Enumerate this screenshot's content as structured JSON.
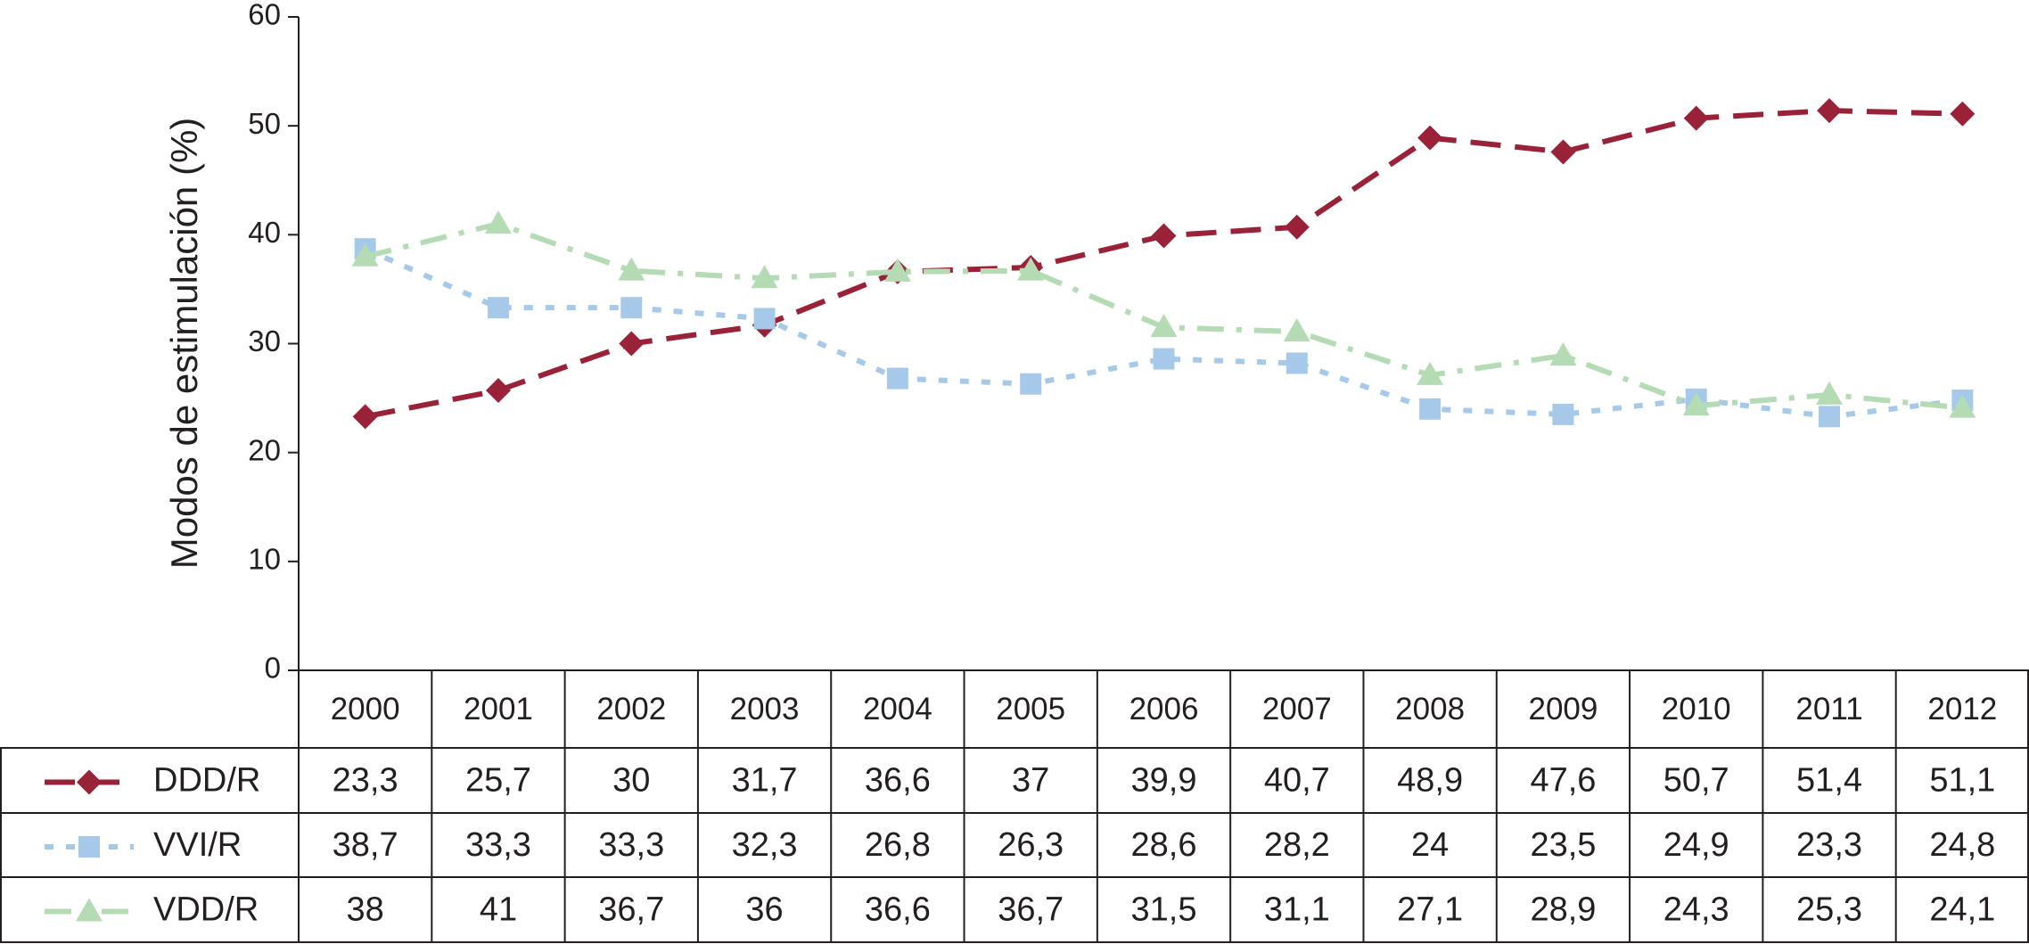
{
  "chart_data": {
    "type": "line",
    "y_label": "Modos de estimulación (%)",
    "categories": [
      "2000",
      "2001",
      "2002",
      "2003",
      "2004",
      "2005",
      "2006",
      "2007",
      "2008",
      "2009",
      "2010",
      "2011",
      "2012"
    ],
    "ylim": [
      0,
      60
    ],
    "yticks": [
      0,
      10,
      20,
      30,
      40,
      50,
      60
    ],
    "series": [
      {
        "name": "DDD/R",
        "color": "#9a2238",
        "marker": "diamond",
        "line_style": "dashed",
        "values": [
          23.3,
          25.7,
          30,
          31.7,
          36.6,
          37,
          39.9,
          40.7,
          48.9,
          47.6,
          50.7,
          51.4,
          51.1
        ],
        "value_labels": [
          "23,3",
          "25,7",
          "30",
          "31,7",
          "36,6",
          "37",
          "39,9",
          "40,7",
          "48,9",
          "47,6",
          "50,7",
          "51,4",
          "51,1"
        ]
      },
      {
        "name": "VVI/R",
        "color": "#a7c9e9",
        "marker": "square",
        "line_style": "dotted",
        "values": [
          38.7,
          33.3,
          33.3,
          32.3,
          26.8,
          26.3,
          28.6,
          28.2,
          24,
          23.5,
          24.9,
          23.3,
          24.8
        ],
        "value_labels": [
          "38,7",
          "33,3",
          "33,3",
          "32,3",
          "26,8",
          "26,3",
          "28,6",
          "28,2",
          "24",
          "23,5",
          "24,9",
          "23,3",
          "24,8"
        ]
      },
      {
        "name": "VDD/R",
        "color": "#b4dbb4",
        "marker": "triangle",
        "line_style": "dashdot",
        "values": [
          38,
          41,
          36.7,
          36,
          36.6,
          36.7,
          31.5,
          31.1,
          27.1,
          28.9,
          24.3,
          25.3,
          24.1
        ],
        "value_labels": [
          "38",
          "41",
          "36,7",
          "36",
          "36,6",
          "36,7",
          "31,5",
          "31,1",
          "27,1",
          "28,9",
          "24,3",
          "25,3",
          "24,1"
        ]
      }
    ]
  }
}
